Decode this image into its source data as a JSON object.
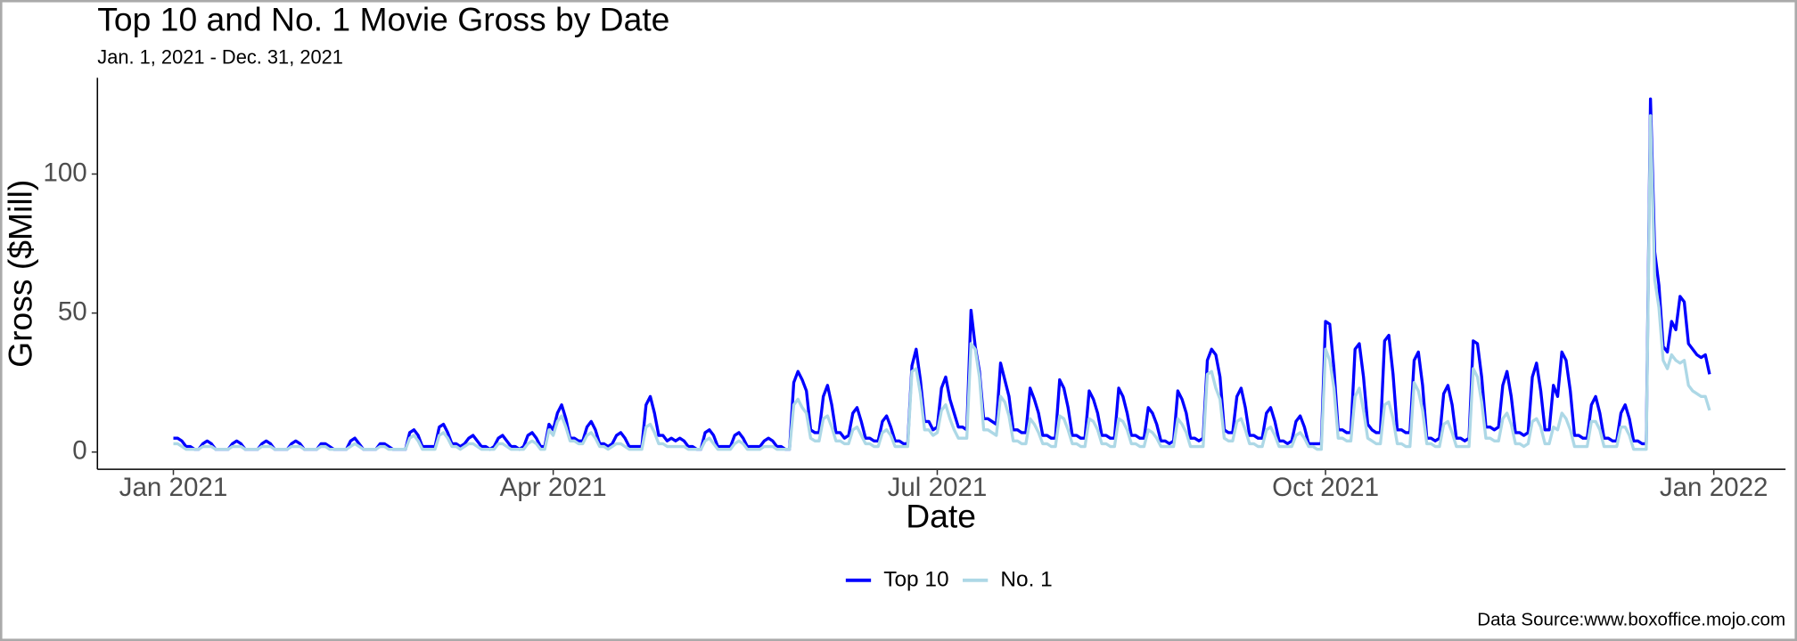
{
  "chart_data": {
    "type": "line",
    "title": "Top 10 and No. 1 Movie Gross by Date",
    "subtitle": "Jan. 1, 2021 - Dec. 31, 2021",
    "x_label": "Date",
    "y_label": "Gross ($Mill)",
    "source": "Data Source:www.boxoffice.mojo.com",
    "legend": "bottom",
    "grid": false,
    "xlim": [
      -18,
      382
    ],
    "xticks": [
      {
        "value": 0,
        "label": "Jan 2021"
      },
      {
        "value": 90,
        "label": "Apr 2021"
      },
      {
        "value": 181,
        "label": "Jul 2021"
      },
      {
        "value": 273,
        "label": "Oct 2021"
      },
      {
        "value": 365,
        "label": "Jan 2022"
      }
    ],
    "ylim": [
      -6.2,
      134.6
    ],
    "yticks": [
      0,
      50,
      100
    ],
    "x": [
      0,
      1,
      2,
      3,
      4,
      5,
      6,
      7,
      8,
      9,
      10,
      11,
      12,
      13,
      14,
      15,
      16,
      17,
      18,
      19,
      20,
      21,
      22,
      23,
      24,
      25,
      26,
      27,
      28,
      29,
      30,
      31,
      32,
      33,
      34,
      35,
      36,
      37,
      38,
      39,
      40,
      41,
      42,
      43,
      44,
      45,
      46,
      47,
      48,
      49,
      50,
      51,
      52,
      53,
      54,
      55,
      56,
      57,
      58,
      59,
      60,
      61,
      62,
      63,
      64,
      65,
      66,
      67,
      68,
      69,
      70,
      71,
      72,
      73,
      74,
      75,
      76,
      77,
      78,
      79,
      80,
      81,
      82,
      83,
      84,
      85,
      86,
      87,
      88,
      89,
      90,
      91,
      92,
      93,
      94,
      95,
      96,
      97,
      98,
      99,
      100,
      101,
      102,
      103,
      104,
      105,
      106,
      107,
      108,
      109,
      110,
      111,
      112,
      113,
      114,
      115,
      116,
      117,
      118,
      119,
      120,
      121,
      122,
      123,
      124,
      125,
      126,
      127,
      128,
      129,
      130,
      131,
      132,
      133,
      134,
      135,
      136,
      137,
      138,
      139,
      140,
      141,
      142,
      143,
      144,
      145,
      146,
      147,
      148,
      149,
      150,
      151,
      152,
      153,
      154,
      155,
      156,
      157,
      158,
      159,
      160,
      161,
      162,
      163,
      164,
      165,
      166,
      167,
      168,
      169,
      170,
      171,
      172,
      173,
      174,
      175,
      176,
      177,
      178,
      179,
      180,
      181,
      182,
      183,
      184,
      185,
      186,
      187,
      188,
      189,
      190,
      191,
      192,
      193,
      194,
      195,
      196,
      197,
      198,
      199,
      200,
      201,
      202,
      203,
      204,
      205,
      206,
      207,
      208,
      209,
      210,
      211,
      212,
      213,
      214,
      215,
      216,
      217,
      218,
      219,
      220,
      221,
      222,
      223,
      224,
      225,
      226,
      227,
      228,
      229,
      230,
      231,
      232,
      233,
      234,
      235,
      236,
      237,
      238,
      239,
      240,
      241,
      242,
      243,
      244,
      245,
      246,
      247,
      248,
      249,
      250,
      251,
      252,
      253,
      254,
      255,
      256,
      257,
      258,
      259,
      260,
      261,
      262,
      263,
      264,
      265,
      266,
      267,
      268,
      269,
      270,
      271,
      272,
      273,
      274,
      275,
      276,
      277,
      278,
      279,
      280,
      281,
      282,
      283,
      284,
      285,
      286,
      287,
      288,
      289,
      290,
      291,
      292,
      293,
      294,
      295,
      296,
      297,
      298,
      299,
      300,
      301,
      302,
      303,
      304,
      305,
      306,
      307,
      308,
      309,
      310,
      311,
      312,
      313,
      314,
      315,
      316,
      317,
      318,
      319,
      320,
      321,
      322,
      323,
      324,
      325,
      326,
      327,
      328,
      329,
      330,
      331,
      332,
      333,
      334,
      335,
      336,
      337,
      338,
      339,
      340,
      341,
      342,
      343,
      344,
      345,
      346,
      347,
      348,
      349,
      350,
      351,
      352,
      353,
      354,
      355,
      356,
      357,
      358,
      359,
      360,
      361,
      362,
      363,
      364
    ],
    "series": [
      {
        "name": "Top 10",
        "color": "#0000ff",
        "values": [
          5,
          5,
          4,
          2,
          2,
          1,
          1,
          3,
          4,
          3,
          1,
          1,
          1,
          1,
          3,
          4,
          3,
          1,
          1,
          1,
          1,
          3,
          4,
          3,
          1,
          1,
          1,
          1,
          3,
          4,
          3,
          1,
          1,
          1,
          1,
          3,
          3,
          2,
          1,
          1,
          1,
          1,
          4,
          5,
          3,
          1,
          1,
          1,
          1,
          3,
          3,
          2,
          1,
          1,
          1,
          1,
          7,
          8,
          6,
          2,
          2,
          2,
          2,
          9,
          10,
          7,
          3,
          3,
          2,
          3,
          5,
          6,
          4,
          2,
          2,
          1,
          2,
          5,
          6,
          4,
          2,
          2,
          1,
          2,
          6,
          7,
          5,
          2,
          2,
          10,
          8,
          14,
          17,
          12,
          5,
          5,
          4,
          4,
          9,
          11,
          8,
          3,
          3,
          2,
          3,
          6,
          7,
          5,
          2,
          2,
          2,
          2,
          17,
          20,
          14,
          6,
          6,
          4,
          5,
          4,
          5,
          4,
          2,
          2,
          1,
          1,
          7,
          8,
          6,
          2,
          2,
          2,
          2,
          6,
          7,
          5,
          2,
          2,
          2,
          2,
          4,
          5,
          4,
          2,
          2,
          1,
          1,
          25,
          29,
          26,
          22,
          8,
          7,
          7,
          20,
          24,
          17,
          7,
          7,
          5,
          6,
          14,
          16,
          11,
          5,
          5,
          4,
          4,
          11,
          13,
          9,
          4,
          4,
          3,
          3,
          31,
          37,
          26,
          11,
          11,
          8,
          9,
          23,
          27,
          19,
          14,
          9,
          9,
          8,
          51,
          38,
          29,
          12,
          12,
          11,
          10,
          32,
          26,
          20,
          8,
          8,
          7,
          7,
          23,
          19,
          14,
          6,
          6,
          5,
          5,
          26,
          23,
          16,
          6,
          6,
          5,
          5,
          22,
          19,
          14,
          6,
          6,
          5,
          5,
          23,
          20,
          14,
          6,
          6,
          5,
          5,
          16,
          14,
          10,
          4,
          4,
          3,
          4,
          22,
          19,
          14,
          5,
          5,
          4,
          5,
          33,
          37,
          35,
          27,
          8,
          7,
          7,
          20,
          23,
          16,
          6,
          6,
          5,
          5,
          14,
          16,
          11,
          4,
          4,
          3,
          4,
          11,
          13,
          9,
          3,
          3,
          3,
          3,
          47,
          46,
          30,
          8,
          8,
          7,
          7,
          37,
          39,
          27,
          10,
          8,
          7,
          7,
          40,
          42,
          28,
          8,
          8,
          7,
          7,
          33,
          36,
          24,
          5,
          5,
          4,
          5,
          21,
          24,
          17,
          5,
          5,
          4,
          5,
          40,
          39,
          27,
          9,
          9,
          8,
          9,
          24,
          29,
          20,
          7,
          7,
          6,
          7,
          27,
          32,
          22,
          8,
          8,
          24,
          20,
          36,
          33,
          22,
          6,
          6,
          5,
          5,
          17,
          20,
          14,
          5,
          5,
          4,
          4,
          14,
          17,
          12,
          4,
          4,
          3,
          3,
          127,
          72,
          60,
          38,
          36,
          47,
          44,
          56,
          54,
          39,
          37,
          35,
          34,
          35,
          28
        ]
      },
      {
        "name": "No. 1",
        "color": "#add8e6",
        "values": [
          3,
          3,
          2,
          1,
          1,
          1,
          1,
          2,
          2,
          2,
          1,
          1,
          1,
          1,
          2,
          2,
          2,
          1,
          1,
          1,
          1,
          2,
          2,
          2,
          1,
          1,
          1,
          1,
          2,
          2,
          2,
          1,
          1,
          1,
          1,
          2,
          2,
          1,
          1,
          1,
          1,
          1,
          2,
          3,
          2,
          1,
          1,
          1,
          1,
          2,
          2,
          1,
          1,
          1,
          1,
          1,
          5,
          6,
          4,
          1,
          1,
          1,
          1,
          6,
          7,
          5,
          2,
          2,
          1,
          2,
          3,
          3,
          2,
          1,
          1,
          1,
          1,
          3,
          3,
          2,
          1,
          1,
          1,
          1,
          3,
          4,
          3,
          1,
          1,
          8,
          6,
          11,
          13,
          9,
          4,
          4,
          3,
          3,
          6,
          7,
          5,
          2,
          2,
          1,
          2,
          3,
          3,
          2,
          1,
          1,
          1,
          1,
          9,
          10,
          7,
          3,
          3,
          2,
          2,
          2,
          2,
          2,
          1,
          1,
          1,
          1,
          4,
          5,
          3,
          1,
          1,
          1,
          1,
          3,
          4,
          3,
          1,
          1,
          1,
          1,
          2,
          2,
          2,
          1,
          1,
          1,
          1,
          17,
          19,
          16,
          14,
          5,
          4,
          4,
          12,
          13,
          9,
          4,
          4,
          3,
          3,
          8,
          9,
          6,
          3,
          3,
          2,
          2,
          7,
          8,
          6,
          2,
          2,
          2,
          2,
          29,
          30,
          21,
          8,
          8,
          6,
          7,
          15,
          17,
          12,
          8,
          5,
          5,
          5,
          39,
          37,
          27,
          8,
          8,
          7,
          6,
          20,
          18,
          13,
          4,
          4,
          3,
          3,
          12,
          10,
          7,
          3,
          3,
          2,
          2,
          13,
          12,
          8,
          3,
          3,
          2,
          2,
          12,
          11,
          8,
          3,
          3,
          2,
          2,
          12,
          11,
          8,
          3,
          3,
          2,
          2,
          8,
          7,
          5,
          2,
          2,
          2,
          2,
          12,
          10,
          7,
          2,
          2,
          2,
          2,
          28,
          29,
          23,
          19,
          5,
          4,
          4,
          11,
          12,
          8,
          3,
          3,
          2,
          2,
          8,
          9,
          6,
          2,
          2,
          2,
          2,
          6,
          7,
          5,
          2,
          2,
          1,
          1,
          37,
          33,
          23,
          5,
          5,
          4,
          4,
          20,
          23,
          15,
          5,
          4,
          3,
          3,
          17,
          18,
          12,
          3,
          3,
          2,
          2,
          25,
          22,
          15,
          3,
          3,
          2,
          2,
          10,
          11,
          7,
          2,
          2,
          2,
          2,
          30,
          27,
          18,
          5,
          5,
          4,
          4,
          12,
          14,
          10,
          3,
          3,
          2,
          3,
          11,
          12,
          9,
          3,
          3,
          9,
          8,
          14,
          12,
          8,
          2,
          2,
          2,
          2,
          11,
          11,
          8,
          2,
          2,
          2,
          2,
          9,
          9,
          6,
          1,
          1,
          1,
          1,
          121,
          62,
          52,
          33,
          30,
          35,
          33,
          32,
          33,
          24,
          22,
          21,
          20,
          20,
          15
        ]
      }
    ]
  }
}
